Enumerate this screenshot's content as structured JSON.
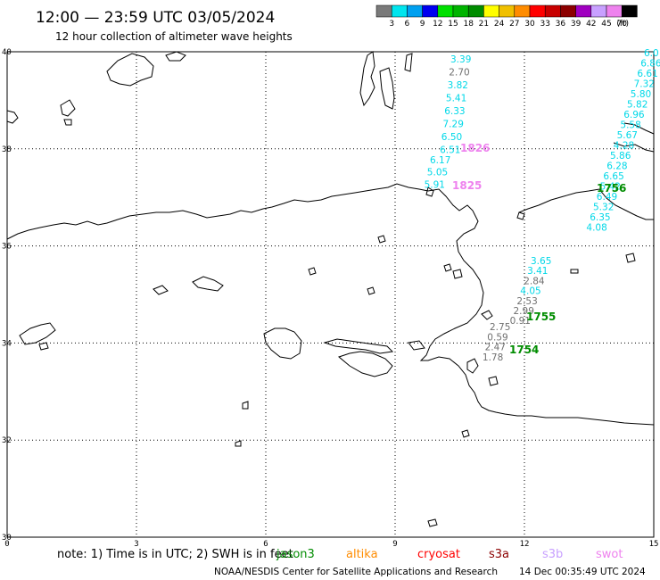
{
  "header": {
    "title": "12:00 — 23:59 UTC 03/05/2024",
    "subtitle": "12 hour collection of altimeter wave heights"
  },
  "legend": {
    "unit": "(ft)",
    "labels": [
      "3",
      "6",
      "9",
      "12",
      "15",
      "18",
      "21",
      "24",
      "27",
      "30",
      "33",
      "36",
      "39",
      "42",
      "45",
      "70"
    ],
    "colors": [
      "#7a7a7a",
      "#00e5ee",
      "#00a0f0",
      "#0000f0",
      "#00e000",
      "#00b400",
      "#008c00",
      "#ffff00",
      "#f0c000",
      "#ff8c00",
      "#ff0000",
      "#c80000",
      "#8c0000",
      "#a000c0",
      "#c8a0ff",
      "#ee82ee",
      "#000000"
    ]
  },
  "map": {
    "lat_ticks": [
      "40",
      "38",
      "36",
      "34",
      "32",
      "30"
    ],
    "lon_ticks": [
      "0",
      "3",
      "6",
      "9",
      "12",
      "15"
    ]
  },
  "tracks": [
    {
      "label": "1826",
      "color": "#ee82ee",
      "points": [
        {
          "v": "3.39",
          "c": "#00d8e8"
        },
        {
          "v": "2.70",
          "c": "#707070"
        },
        {
          "v": "3.82",
          "c": "#00d8e8"
        },
        {
          "v": "5.41",
          "c": "#00d8e8"
        },
        {
          "v": "6.33",
          "c": "#00d8e8"
        },
        {
          "v": "7.29",
          "c": "#00d8e8"
        },
        {
          "v": "6.50",
          "c": "#00d8e8"
        },
        {
          "v": "6.51",
          "c": "#00d8e8"
        }
      ]
    },
    {
      "label": "1825",
      "color": "#ee82ee",
      "points": [
        {
          "v": "6.17",
          "c": "#00d8e8"
        },
        {
          "v": "5.05",
          "c": "#00d8e8"
        },
        {
          "v": "5.91",
          "c": "#00d8e8"
        }
      ]
    },
    {
      "label": "1756",
      "color": "#008c00",
      "points": [
        {
          "v": "6.0",
          "c": "#00d8e8"
        },
        {
          "v": "6.86",
          "c": "#00d8e8"
        },
        {
          "v": "6.61",
          "c": "#00d8e8"
        },
        {
          "v": "7.32",
          "c": "#00d8e8"
        },
        {
          "v": "5.80",
          "c": "#00d8e8"
        },
        {
          "v": "5.82",
          "c": "#00d8e8"
        },
        {
          "v": "6.96",
          "c": "#00d8e8"
        },
        {
          "v": "5.58",
          "c": "#00d8e8"
        },
        {
          "v": "5.67",
          "c": "#00d8e8"
        },
        {
          "v": "4.28",
          "c": "#00d8e8"
        },
        {
          "v": "5.86",
          "c": "#00d8e8"
        },
        {
          "v": "6.28",
          "c": "#00d8e8"
        },
        {
          "v": "6.65",
          "c": "#00d8e8"
        },
        {
          "v": "5.42",
          "c": "#00d8e8"
        },
        {
          "v": "6.49",
          "c": "#00d8e8"
        },
        {
          "v": "5.32",
          "c": "#00d8e8"
        },
        {
          "v": "6.35",
          "c": "#00d8e8"
        },
        {
          "v": "4.08",
          "c": "#00d8e8"
        }
      ]
    },
    {
      "label": "1755",
      "color": "#008c00",
      "points": [
        {
          "v": "3.65",
          "c": "#00d8e8"
        },
        {
          "v": "3.41",
          "c": "#00d8e8"
        },
        {
          "v": "2.84",
          "c": "#707070"
        },
        {
          "v": "4.05",
          "c": "#00d8e8"
        },
        {
          "v": "2.53",
          "c": "#707070"
        },
        {
          "v": "2.99",
          "c": "#707070"
        },
        {
          "v": "0.91",
          "c": "#707070"
        }
      ]
    },
    {
      "label": "1754",
      "color": "#008c00",
      "points": [
        {
          "v": "2.75",
          "c": "#707070"
        },
        {
          "v": "0.59",
          "c": "#707070"
        },
        {
          "v": "2.47",
          "c": "#707070"
        },
        {
          "v": "1.78",
          "c": "#707070"
        }
      ]
    }
  ],
  "note": {
    "prefix": "note:  1) Time is in UTC; 2) SWH is in feet",
    "satellites": [
      {
        "name": "jason3",
        "color": "#008c00"
      },
      {
        "name": "altika",
        "color": "#ff8c00"
      },
      {
        "name": "cryosat",
        "color": "#ff0000"
      },
      {
        "name": "s3a",
        "color": "#8c0000"
      },
      {
        "name": "s3b",
        "color": "#c8a0ff"
      },
      {
        "name": "swot",
        "color": "#ee82ee"
      }
    ]
  },
  "footer": {
    "credit": "NOAA/NESDIS Center for Satellite Applications and Research",
    "timestamp": "14 Dec 00:35:49 UTC 2024"
  }
}
